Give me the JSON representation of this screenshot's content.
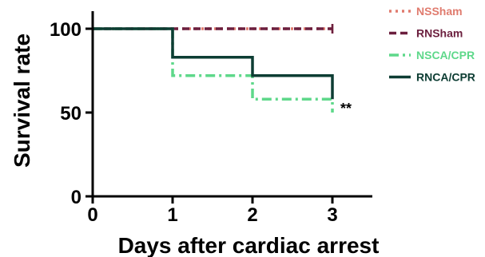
{
  "chart_data": {
    "type": "line",
    "step": true,
    "xlabel": "Days after cardiac arrest",
    "ylabel": "Survival rate",
    "xlim": [
      0,
      3.5
    ],
    "ylim": [
      0,
      100
    ],
    "x_ticks": [
      0,
      1,
      2,
      3
    ],
    "y_ticks": [
      0,
      50,
      100
    ],
    "grid": false,
    "legend_position": "right",
    "series": [
      {
        "name": "NSSham",
        "color": "#e07b6e",
        "style": "dotted",
        "points": [
          [
            0,
            100
          ],
          [
            3,
            100
          ]
        ]
      },
      {
        "name": "RNSham",
        "color": "#6b1f3e",
        "style": "dashed",
        "points": [
          [
            0,
            100
          ],
          [
            3,
            100
          ]
        ]
      },
      {
        "name": "NSCA/CPR",
        "color": "#5ed88a",
        "style": "dashdot",
        "points": [
          [
            0,
            100
          ],
          [
            1,
            100
          ],
          [
            1,
            72
          ],
          [
            2,
            72
          ],
          [
            2,
            58
          ],
          [
            3,
            58
          ],
          [
            3,
            50
          ]
        ]
      },
      {
        "name": "RNCA/CPR",
        "color": "#0d3d33",
        "style": "solid",
        "points": [
          [
            0,
            100
          ],
          [
            1,
            100
          ],
          [
            1,
            83
          ],
          [
            2,
            83
          ],
          [
            2,
            72
          ],
          [
            3,
            72
          ],
          [
            3,
            58
          ]
        ]
      }
    ],
    "annotations": [
      {
        "text": "**",
        "x": 3.1,
        "y": 58
      }
    ]
  }
}
